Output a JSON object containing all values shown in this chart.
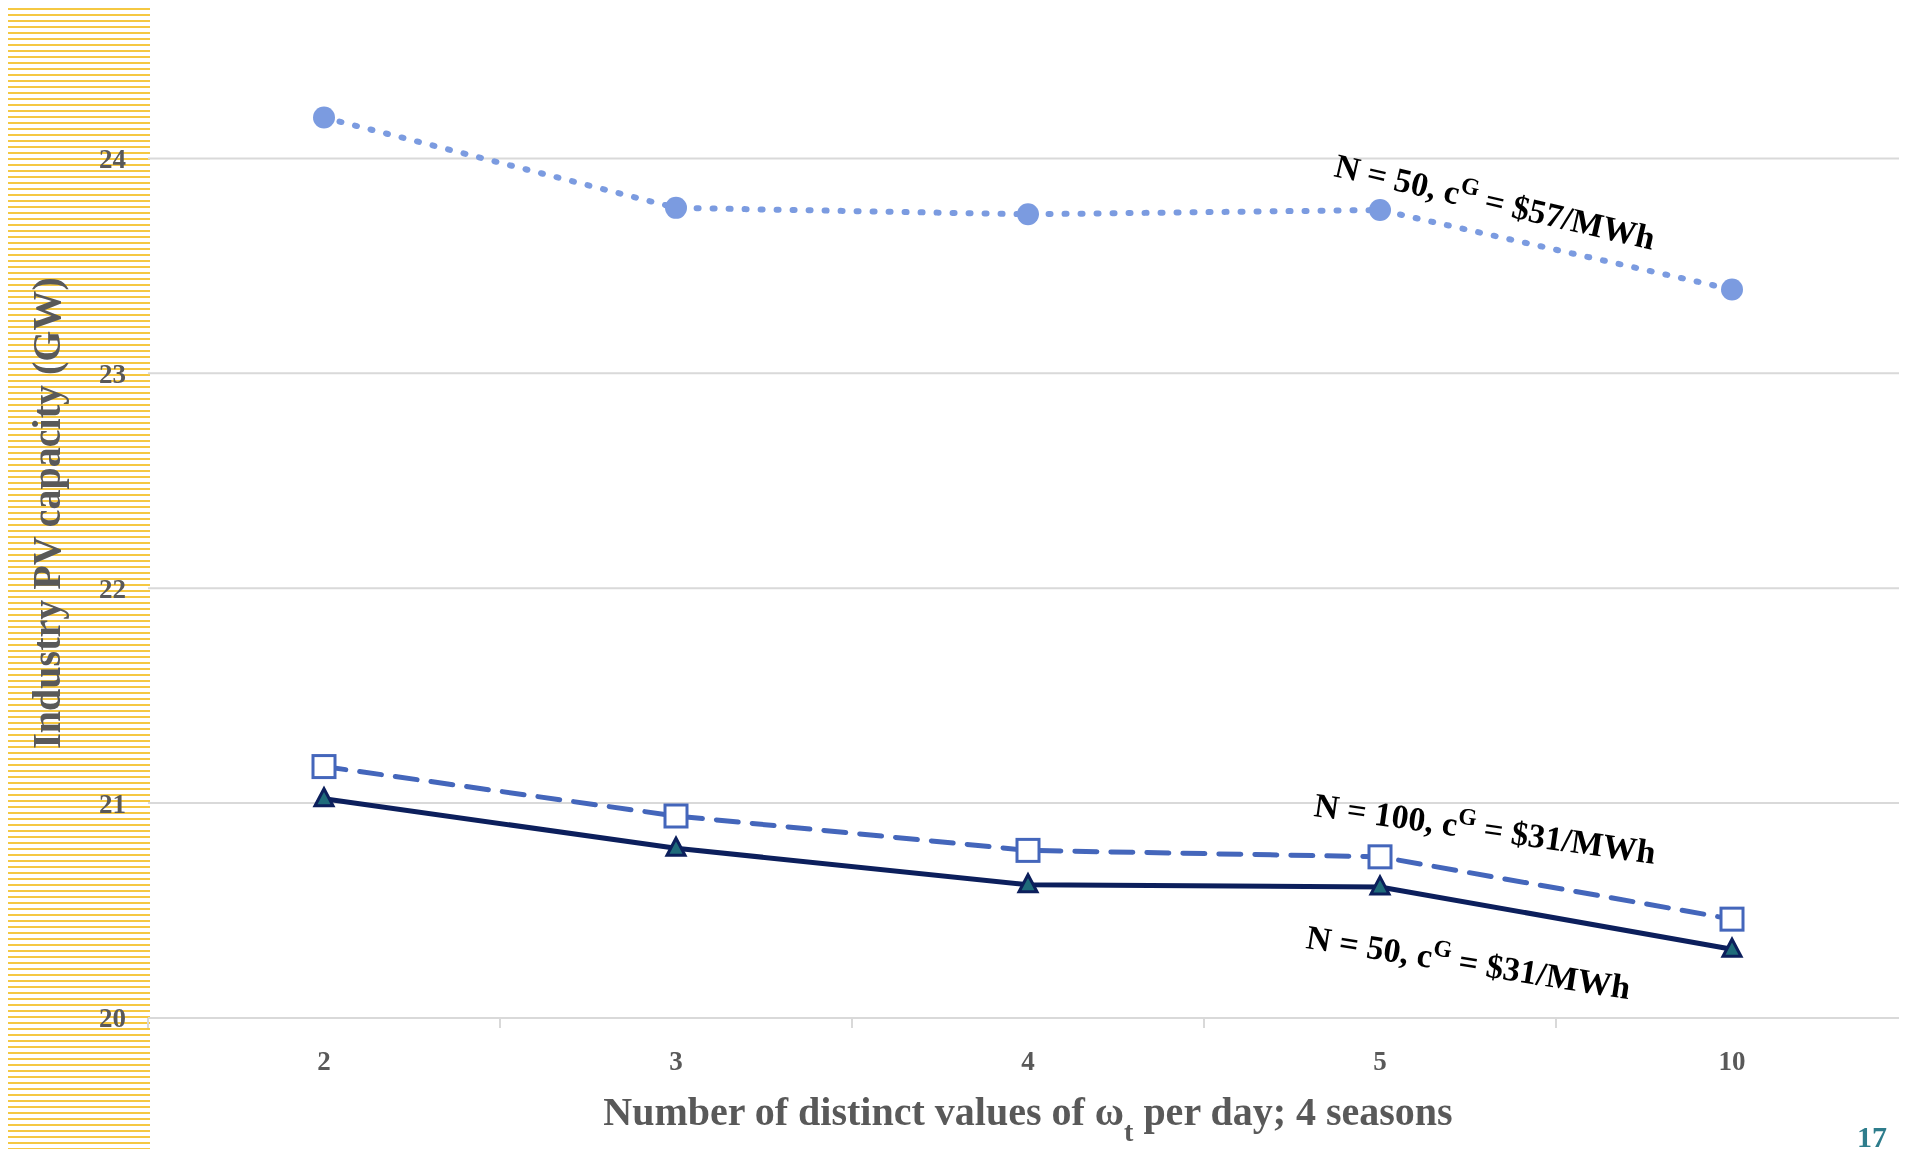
{
  "chart_data": {
    "type": "line",
    "xlabel": "Number of distinct values of ω$_{t}$ per day; 4 seasons",
    "ylabel": "Industry PV capacity (GW)",
    "categories": [
      "2",
      "3",
      "4",
      "5",
      "10"
    ],
    "ylim": [
      20,
      24.7
    ],
    "yticks": [
      20,
      21,
      22,
      23,
      24
    ],
    "grid": "y",
    "series": [
      {
        "color": "#7b9be0",
        "values": [
          24.19,
          23.77,
          23.74,
          23.76,
          23.39
        ],
        "marker": "circle",
        "line_style": "dotted"
      },
      {
        "color": "#4466bb",
        "values": [
          21.17,
          20.94,
          20.78,
          20.75,
          20.46
        ],
        "marker": "square",
        "line_style": "dashed"
      },
      {
        "color": "#0c1f5c",
        "values": [
          21.02,
          20.79,
          20.62,
          20.61,
          20.32
        ],
        "marker": "triangle",
        "line_style": "solid"
      }
    ],
    "annotations": [
      "N = 50, c$^{G}$ = $57/MWh",
      "N = 100, c$^{G}$ = $31/MWh",
      "N = 50, c$^{G}$ = $31/MWh",
      "17"
    ]
  }
}
